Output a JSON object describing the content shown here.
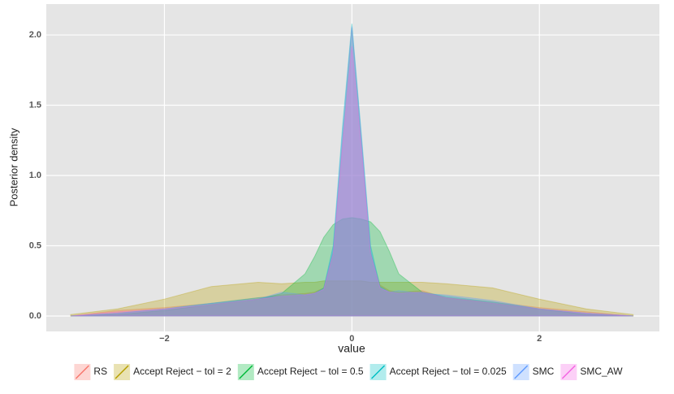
{
  "chart_data": {
    "type": "area",
    "x_label": "value",
    "y_label": "Posterior density",
    "x": [
      -3,
      -2.5,
      -2,
      -1.5,
      -1,
      -0.75,
      -0.5,
      -0.4,
      -0.3,
      -0.2,
      -0.1,
      0,
      0.1,
      0.2,
      0.3,
      0.4,
      0.5,
      0.75,
      1,
      1.5,
      2,
      2.5,
      3
    ],
    "series": [
      {
        "name": "RS",
        "color": "#F8766D",
        "values": [
          0,
          0.04,
          0.06,
          0.09,
          0.13,
          0.15,
          0.16,
          0.17,
          0.2,
          0.45,
          1.25,
          2.05,
          1.25,
          0.45,
          0.22,
          0.18,
          0.17,
          0.18,
          0.13,
          0.1,
          0.06,
          0.03,
          0
        ]
      },
      {
        "name": "Accept Reject − tol =  2",
        "color": "#B79F00",
        "values": [
          0.01,
          0.05,
          0.12,
          0.21,
          0.24,
          0.23,
          0.24,
          0.24,
          0.25,
          0.25,
          0.25,
          0.25,
          0.25,
          0.24,
          0.24,
          0.24,
          0.24,
          0.24,
          0.23,
          0.2,
          0.12,
          0.05,
          0.01
        ]
      },
      {
        "name": "Accept Reject − tol =  0.5",
        "color": "#00BA38",
        "values": [
          0,
          0.01,
          0.04,
          0.08,
          0.12,
          0.16,
          0.3,
          0.42,
          0.56,
          0.65,
          0.69,
          0.7,
          0.69,
          0.67,
          0.6,
          0.46,
          0.3,
          0.17,
          0.13,
          0.09,
          0.05,
          0.01,
          0
        ]
      },
      {
        "name": "Accept Reject − tol =  0.025",
        "color": "#00BFC4",
        "values": [
          0,
          0.02,
          0.05,
          0.09,
          0.13,
          0.14,
          0.15,
          0.16,
          0.2,
          0.5,
          1.35,
          2.08,
          1.3,
          0.5,
          0.21,
          0.17,
          0.16,
          0.17,
          0.14,
          0.1,
          0.05,
          0.02,
          0
        ]
      },
      {
        "name": "SMC",
        "color": "#619CFF",
        "values": [
          0,
          0.02,
          0.05,
          0.09,
          0.12,
          0.17,
          0.15,
          0.16,
          0.19,
          0.48,
          1.3,
          2.06,
          1.28,
          0.47,
          0.2,
          0.17,
          0.18,
          0.16,
          0.15,
          0.11,
          0.05,
          0.02,
          0
        ]
      },
      {
        "name": "SMC_AW",
        "color": "#F564E3",
        "values": [
          0,
          0.03,
          0.05,
          0.08,
          0.12,
          0.14,
          0.15,
          0.16,
          0.19,
          0.44,
          1.2,
          1.92,
          1.2,
          0.44,
          0.2,
          0.17,
          0.16,
          0.17,
          0.13,
          0.09,
          0.05,
          0.02,
          0
        ]
      }
    ],
    "xlim": [
      -3.26,
      3.28
    ],
    "ylim": [
      -0.11,
      2.22
    ],
    "xticks": [
      {
        "value": -2,
        "label": "−2"
      },
      0,
      2
    ],
    "yticks": [
      {
        "value": 0,
        "label": "0.0"
      },
      0.5,
      {
        "value": 1,
        "label": "1.0"
      },
      1.5,
      {
        "value": 2,
        "label": "2.0"
      }
    ],
    "grid": true,
    "legend": "bottom"
  }
}
